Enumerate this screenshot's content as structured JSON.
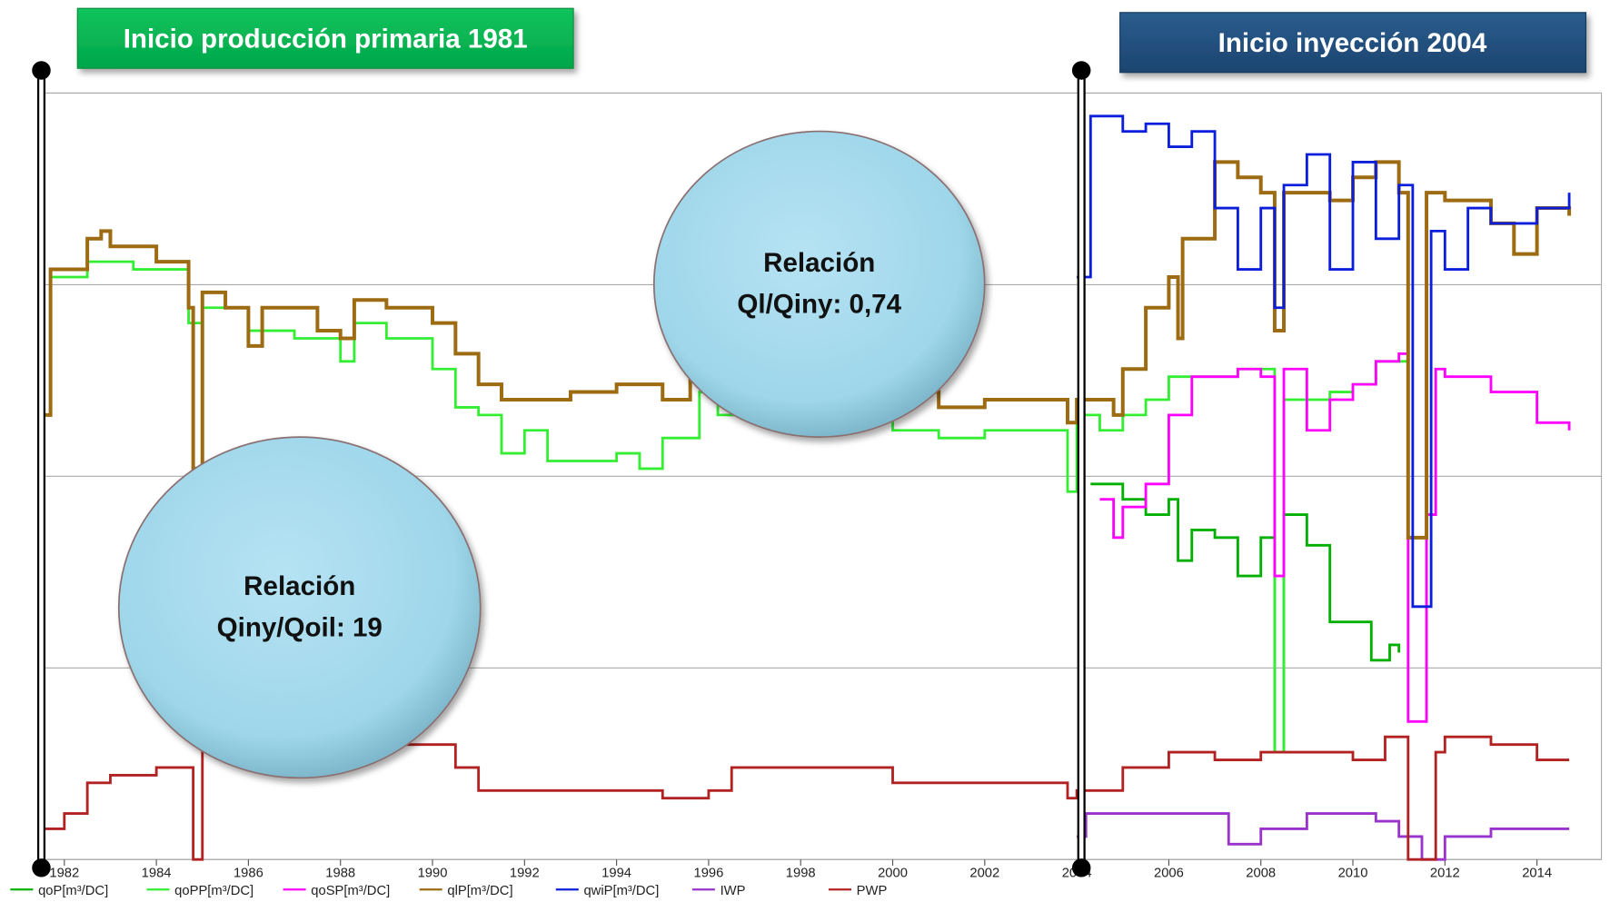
{
  "chart_data": {
    "type": "line",
    "step": true,
    "xlim": [
      1981.5,
      2015.4
    ],
    "xticks": [
      1982,
      1984,
      1986,
      1988,
      1990,
      1992,
      1994,
      1996,
      1998,
      2000,
      2002,
      2004,
      2006,
      2008,
      2010,
      2012,
      2014
    ],
    "ylim": [
      0,
      100
    ],
    "ygrid": [
      0,
      25,
      50,
      75,
      100
    ],
    "markers_x": [
      1981.5,
      2004.1
    ],
    "annotations": {
      "start_production": "Inicio producción primaria 1981",
      "start_injection": "Inicio inyección 2004",
      "ratio_liquid": [
        "Relación",
        "Ql/Qiny: 0,74"
      ],
      "ratio_oil": [
        "Relación",
        "Qiny/Qoil: 19"
      ]
    },
    "series": [
      {
        "name": "qoP[m³/DC]",
        "color": "#00b000",
        "x": [
          2004.3,
          2005,
          2005.5,
          2006,
          2006.2,
          2006.5,
          2007,
          2007.5,
          2008,
          2008.3,
          2008.5,
          2009,
          2009.5,
          2010,
          2010.4,
          2010.8,
          2011
        ],
        "values": [
          49,
          47,
          45,
          47,
          39,
          43,
          42,
          37,
          42,
          14,
          45,
          41,
          31,
          31,
          26,
          28,
          27
        ]
      },
      {
        "name": "qoPP[m³/DC]",
        "color": "#33ee33",
        "x": [
          1981.5,
          1981.7,
          1982.5,
          1983.5,
          1984.7,
          1985,
          1986,
          1987,
          1988,
          1988.3,
          1989,
          1990,
          1990.5,
          1991,
          1991.5,
          1992,
          1992.5,
          1993,
          1994,
          1994.5,
          1995,
          1995.8,
          1996.2,
          1999.5,
          2000,
          2001,
          2002,
          2003,
          2003.8,
          2004,
          2004.5,
          2005,
          2005.5,
          2006,
          2007,
          2007.5,
          2008,
          2008.3,
          2008.5,
          2009,
          2009.5,
          2010,
          2010.5,
          2011,
          2011.2
        ],
        "values": [
          58,
          76,
          78,
          77,
          70,
          72,
          69,
          68,
          65,
          70,
          68,
          64,
          59,
          58,
          53,
          56,
          52,
          52,
          53,
          51,
          55,
          61,
          58,
          58,
          56,
          55,
          56,
          56,
          48,
          58,
          56,
          58,
          60,
          63,
          63,
          64,
          64,
          14,
          60,
          60,
          61,
          62,
          65,
          65,
          45
        ]
      },
      {
        "name": "qoSP[m³/DC]",
        "color": "#ff00ff",
        "x": [
          2004.5,
          2004.8,
          2005,
          2005.5,
          2006,
          2006.5,
          2007,
          2007.5,
          2008,
          2008.3,
          2008.5,
          2009,
          2009.5,
          2010,
          2010.5,
          2011,
          2011.2,
          2011.6,
          2011.8,
          2012,
          2013,
          2014,
          2014.7
        ],
        "values": [
          47,
          42,
          46,
          49,
          58,
          63,
          63,
          64,
          63,
          37,
          64,
          56,
          60,
          62,
          65,
          66,
          18,
          45,
          64,
          63,
          61,
          57,
          56
        ]
      },
      {
        "name": "qlP[m³/DC]",
        "color": "#9c6b12",
        "x": [
          1981.5,
          1981.7,
          1982.5,
          1982.8,
          1983,
          1984,
          1984.7,
          1984.8,
          1985,
          1985.5,
          1986,
          1986.3,
          1987,
          1987.5,
          1988,
          1988.3,
          1989,
          1989.5,
          1990,
          1990.5,
          1991,
          1991.5,
          1992,
          1993,
          1994,
          1995,
          1995.6,
          1996,
          1999.5,
          2000,
          2001,
          2002,
          2003,
          2003.8,
          2004,
          2004.5,
          2004.8,
          2005,
          2005.5,
          2006,
          2006.2,
          2006.3,
          2007,
          2007.5,
          2008,
          2008.3,
          2008.5,
          2009,
          2009.5,
          2010,
          2010.5,
          2011,
          2011.2,
          2011.6,
          2012,
          2013,
          2013.5,
          2014,
          2014.7
        ],
        "values": [
          58,
          77,
          81,
          82,
          80,
          78,
          72,
          51,
          74,
          72,
          67,
          72,
          72,
          69,
          68,
          73,
          72,
          72,
          70,
          66,
          62,
          60,
          60,
          61,
          62,
          60,
          64,
          62,
          62,
          61,
          59,
          60,
          60,
          57,
          60,
          60,
          58,
          64,
          72,
          76,
          68,
          81,
          91,
          89,
          87,
          69,
          87,
          87,
          86,
          89,
          91,
          87,
          42,
          87,
          86,
          83,
          79,
          85,
          84
        ]
      },
      {
        "name": "qwiP[m³/DC]",
        "color": "#0a1edc",
        "x": [
          2004,
          2004.3,
          2005,
          2005.5,
          2006,
          2006.5,
          2007,
          2007.5,
          2008,
          2008.3,
          2008.5,
          2009,
          2009.5,
          2010,
          2010.5,
          2011,
          2011.3,
          2011.7,
          2012,
          2012.5,
          2013,
          2014,
          2014.7
        ],
        "values": [
          76,
          97,
          95,
          96,
          93,
          95,
          85,
          77,
          85,
          72,
          88,
          92,
          77,
          91,
          81,
          88,
          33,
          82,
          77,
          85,
          83,
          85,
          87
        ]
      },
      {
        "name": "IWP",
        "color": "#9933cc",
        "x": [
          2004,
          2004.2,
          2007,
          2007.3,
          2008,
          2009,
          2010.5,
          2011,
          2011.5,
          2012,
          2013,
          2014.7
        ],
        "values": [
          3,
          6,
          6,
          2,
          4,
          6,
          5,
          3,
          0,
          3,
          4,
          4
        ]
      },
      {
        "name": "PWP",
        "color": "#b22222",
        "x": [
          1981.5,
          1982,
          1982.5,
          1983,
          1984,
          1984.7,
          1984.8,
          1985,
          1986,
          1990,
          1990.5,
          1991,
          1994,
          1995,
          1996,
          1996.5,
          1998,
          2000,
          2003,
          2003.8,
          2004,
          2005,
          2006,
          2007,
          2008,
          2009,
          2010,
          2010.7,
          2011.2,
          2011.8,
          2012,
          2013,
          2014,
          2014.7
        ],
        "values": [
          4,
          6,
          10,
          11,
          12,
          12,
          0,
          15,
          15,
          15,
          12,
          9,
          9,
          8,
          9,
          12,
          12,
          10,
          10,
          8,
          9,
          12,
          14,
          13,
          14,
          14,
          13,
          16,
          0,
          14,
          16,
          15,
          13,
          13
        ]
      }
    ]
  }
}
